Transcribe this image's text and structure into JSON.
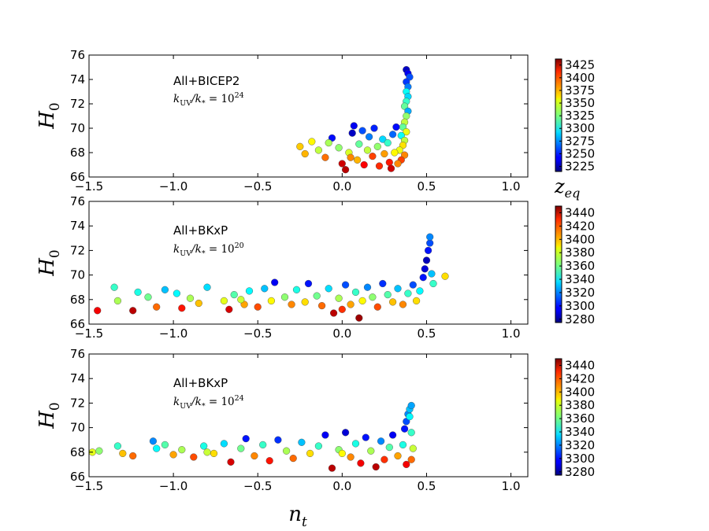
{
  "chart_data": [
    {
      "type": "scatter",
      "ylabel": "H",
      "ylabel_sub": "0",
      "xlabel": "",
      "xlim": [
        -1.5,
        1.1
      ],
      "ylim": [
        66,
        76
      ],
      "xticks": [
        "−1.5",
        "−1.0",
        "−0.5",
        "0.0",
        "0.5",
        "1.0"
      ],
      "yticks": [
        "66",
        "68",
        "70",
        "72",
        "74",
        "76"
      ],
      "annotation": "All+BICEP2",
      "annotation_math": "k_UV/k_* = 10^24",
      "colorbar": {
        "label": "z_eq",
        "range": [
          3215,
          3437
        ],
        "ticks": [
          "3225",
          "3250",
          "3275",
          "3300",
          "3325",
          "3350",
          "3375",
          "3400",
          "3425"
        ]
      },
      "points": [
        {
          "x": 0.38,
          "y": 74.8,
          "c": 3230
        },
        {
          "x": 0.39,
          "y": 74.5,
          "c": 3240
        },
        {
          "x": 0.4,
          "y": 74.2,
          "c": 3260
        },
        {
          "x": 0.38,
          "y": 73.8,
          "c": 3255
        },
        {
          "x": 0.39,
          "y": 73.4,
          "c": 3270
        },
        {
          "x": 0.38,
          "y": 73.0,
          "c": 3300
        },
        {
          "x": 0.39,
          "y": 72.6,
          "c": 3290
        },
        {
          "x": 0.38,
          "y": 72.2,
          "c": 3310
        },
        {
          "x": 0.37,
          "y": 71.8,
          "c": 3320
        },
        {
          "x": 0.39,
          "y": 71.4,
          "c": 3280
        },
        {
          "x": 0.38,
          "y": 71.0,
          "c": 3330
        },
        {
          "x": 0.37,
          "y": 70.5,
          "c": 3340
        },
        {
          "x": 0.36,
          "y": 70.1,
          "c": 3320
        },
        {
          "x": 0.38,
          "y": 69.7,
          "c": 3350
        },
        {
          "x": 0.35,
          "y": 69.4,
          "c": 3300
        },
        {
          "x": 0.37,
          "y": 69.0,
          "c": 3340
        },
        {
          "x": 0.36,
          "y": 68.6,
          "c": 3360
        },
        {
          "x": 0.34,
          "y": 68.2,
          "c": 3350
        },
        {
          "x": 0.37,
          "y": 67.8,
          "c": 3380
        },
        {
          "x": 0.35,
          "y": 67.4,
          "c": 3395
        },
        {
          "x": 0.33,
          "y": 67.1,
          "c": 3380
        },
        {
          "x": -0.25,
          "y": 68.5,
          "c": 3365
        },
        {
          "x": -0.18,
          "y": 68.9,
          "c": 3355
        },
        {
          "x": -0.14,
          "y": 68.2,
          "c": 3340
        },
        {
          "x": -0.1,
          "y": 67.6,
          "c": 3385
        },
        {
          "x": -0.06,
          "y": 69.2,
          "c": 3245
        },
        {
          "x": -0.02,
          "y": 68.4,
          "c": 3330
        },
        {
          "x": 0.0,
          "y": 67.1,
          "c": 3420
        },
        {
          "x": 0.02,
          "y": 66.6,
          "c": 3425
        },
        {
          "x": 0.04,
          "y": 68.0,
          "c": 3345
        },
        {
          "x": 0.06,
          "y": 69.6,
          "c": 3230
        },
        {
          "x": 0.07,
          "y": 70.2,
          "c": 3240
        },
        {
          "x": 0.09,
          "y": 67.4,
          "c": 3370
        },
        {
          "x": 0.1,
          "y": 68.7,
          "c": 3320
        },
        {
          "x": 0.12,
          "y": 69.8,
          "c": 3260
        },
        {
          "x": 0.13,
          "y": 67.0,
          "c": 3410
        },
        {
          "x": 0.15,
          "y": 68.2,
          "c": 3340
        },
        {
          "x": 0.16,
          "y": 69.3,
          "c": 3270
        },
        {
          "x": 0.18,
          "y": 67.7,
          "c": 3395
        },
        {
          "x": 0.19,
          "y": 70.0,
          "c": 3250
        },
        {
          "x": 0.21,
          "y": 68.5,
          "c": 3330
        },
        {
          "x": 0.22,
          "y": 66.9,
          "c": 3400
        },
        {
          "x": 0.24,
          "y": 69.1,
          "c": 3290
        },
        {
          "x": 0.25,
          "y": 67.9,
          "c": 3375
        },
        {
          "x": 0.27,
          "y": 68.8,
          "c": 3310
        },
        {
          "x": 0.28,
          "y": 67.2,
          "c": 3405
        },
        {
          "x": 0.29,
          "y": 66.7,
          "c": 3420
        },
        {
          "x": 0.3,
          "y": 69.5,
          "c": 3265
        },
        {
          "x": 0.31,
          "y": 68.0,
          "c": 3355
        },
        {
          "x": 0.32,
          "y": 70.1,
          "c": 3245
        },
        {
          "x": -0.22,
          "y": 67.9,
          "c": 3370
        },
        {
          "x": -0.08,
          "y": 68.8,
          "c": 3335
        },
        {
          "x": 0.05,
          "y": 67.6,
          "c": 3380
        }
      ]
    },
    {
      "type": "scatter",
      "ylabel": "H",
      "ylabel_sub": "0",
      "xlabel": "",
      "xlim": [
        -1.5,
        1.1
      ],
      "ylim": [
        66,
        76
      ],
      "xticks": [
        "−1.5",
        "−1.0",
        "−0.5",
        "0.0",
        "0.5",
        "1.0"
      ],
      "yticks": [
        "66",
        "68",
        "70",
        "72",
        "74",
        "76"
      ],
      "annotation": "All+BKxP",
      "annotation_math": "k_UV/k_* = 10^20",
      "colorbar": {
        "label": "",
        "range": [
          3275,
          3450
        ],
        "ticks": [
          "3280",
          "3300",
          "3320",
          "3340",
          "3360",
          "3380",
          "3400",
          "3420",
          "3440"
        ]
      },
      "points": [
        {
          "x": -1.45,
          "y": 67.1,
          "c": 3430
        },
        {
          "x": -1.35,
          "y": 69.0,
          "c": 3350
        },
        {
          "x": -1.33,
          "y": 67.9,
          "c": 3370
        },
        {
          "x": -1.24,
          "y": 67.1,
          "c": 3440
        },
        {
          "x": -1.21,
          "y": 68.6,
          "c": 3345
        },
        {
          "x": -1.15,
          "y": 68.2,
          "c": 3360
        },
        {
          "x": -1.1,
          "y": 67.4,
          "c": 3410
        },
        {
          "x": -1.05,
          "y": 68.8,
          "c": 3330
        },
        {
          "x": -0.98,
          "y": 68.5,
          "c": 3340
        },
        {
          "x": -0.95,
          "y": 67.3,
          "c": 3425
        },
        {
          "x": -0.9,
          "y": 68.1,
          "c": 3370
        },
        {
          "x": -0.85,
          "y": 67.7,
          "c": 3395
        },
        {
          "x": -0.8,
          "y": 69.0,
          "c": 3335
        },
        {
          "x": -0.7,
          "y": 67.9,
          "c": 3380
        },
        {
          "x": -0.67,
          "y": 67.2,
          "c": 3435
        },
        {
          "x": -0.64,
          "y": 68.4,
          "c": 3355
        },
        {
          "x": -0.58,
          "y": 67.6,
          "c": 3400
        },
        {
          "x": -0.55,
          "y": 68.7,
          "c": 3340
        },
        {
          "x": -0.5,
          "y": 67.4,
          "c": 3415
        },
        {
          "x": -0.46,
          "y": 68.9,
          "c": 3330
        },
        {
          "x": -0.42,
          "y": 67.9,
          "c": 3385
        },
        {
          "x": -0.4,
          "y": 69.4,
          "c": 3295
        },
        {
          "x": -0.34,
          "y": 68.2,
          "c": 3365
        },
        {
          "x": -0.3,
          "y": 67.6,
          "c": 3405
        },
        {
          "x": -0.27,
          "y": 68.8,
          "c": 3345
        },
        {
          "x": -0.22,
          "y": 67.8,
          "c": 3390
        },
        {
          "x": -0.2,
          "y": 69.3,
          "c": 3300
        },
        {
          "x": -0.15,
          "y": 68.3,
          "c": 3360
        },
        {
          "x": -0.12,
          "y": 67.5,
          "c": 3410
        },
        {
          "x": -0.08,
          "y": 68.9,
          "c": 3335
        },
        {
          "x": -0.05,
          "y": 66.9,
          "c": 3440
        },
        {
          "x": -0.02,
          "y": 68.1,
          "c": 3370
        },
        {
          "x": 0.02,
          "y": 69.2,
          "c": 3310
        },
        {
          "x": 0.05,
          "y": 67.6,
          "c": 3400
        },
        {
          "x": 0.08,
          "y": 68.6,
          "c": 3350
        },
        {
          "x": 0.1,
          "y": 66.5,
          "c": 3445
        },
        {
          "x": 0.12,
          "y": 67.9,
          "c": 3385
        },
        {
          "x": 0.15,
          "y": 69.0,
          "c": 3320
        },
        {
          "x": 0.18,
          "y": 68.2,
          "c": 3365
        },
        {
          "x": 0.21,
          "y": 67.4,
          "c": 3415
        },
        {
          "x": 0.24,
          "y": 69.3,
          "c": 3305
        },
        {
          "x": 0.27,
          "y": 68.4,
          "c": 3355
        },
        {
          "x": 0.3,
          "y": 67.8,
          "c": 3395
        },
        {
          "x": 0.33,
          "y": 68.9,
          "c": 3330
        },
        {
          "x": 0.36,
          "y": 67.6,
          "c": 3405
        },
        {
          "x": 0.39,
          "y": 68.5,
          "c": 3350
        },
        {
          "x": 0.42,
          "y": 69.2,
          "c": 3310
        },
        {
          "x": 0.44,
          "y": 67.9,
          "c": 3390
        },
        {
          "x": 0.46,
          "y": 68.7,
          "c": 3340
        },
        {
          "x": 0.48,
          "y": 69.8,
          "c": 3300
        },
        {
          "x": 0.49,
          "y": 70.5,
          "c": 3290
        },
        {
          "x": 0.5,
          "y": 71.2,
          "c": 3285
        },
        {
          "x": 0.51,
          "y": 72.0,
          "c": 3300
        },
        {
          "x": 0.52,
          "y": 72.6,
          "c": 3310
        },
        {
          "x": 0.52,
          "y": 73.1,
          "c": 3320
        },
        {
          "x": 0.53,
          "y": 70.1,
          "c": 3330
        },
        {
          "x": 0.54,
          "y": 69.3,
          "c": 3350
        },
        {
          "x": 0.61,
          "y": 69.9,
          "c": 3390
        },
        {
          "x": -0.6,
          "y": 68.0,
          "c": 3375
        },
        {
          "x": 0.0,
          "y": 67.2,
          "c": 3420
        }
      ]
    },
    {
      "type": "scatter",
      "ylabel": "H",
      "ylabel_sub": "0",
      "xlabel": "n",
      "xlabel_sub": "t",
      "xlim": [
        -1.5,
        1.1
      ],
      "ylim": [
        66,
        76
      ],
      "xticks": [
        "−1.5",
        "−1.0",
        "−0.5",
        "0.0",
        "0.5",
        "1.0"
      ],
      "yticks": [
        "66",
        "68",
        "70",
        "72",
        "74",
        "76"
      ],
      "annotation": "All+BKxP",
      "annotation_math": "k_UV/k_* = 10^24",
      "colorbar": {
        "label": "",
        "range": [
          3275,
          3450
        ],
        "ticks": [
          "3280",
          "3300",
          "3320",
          "3340",
          "3360",
          "3380",
          "3400",
          "3420",
          "3440"
        ]
      },
      "points": [
        {
          "x": -1.48,
          "y": 68.0,
          "c": 3380
        },
        {
          "x": -1.44,
          "y": 68.1,
          "c": 3365
        },
        {
          "x": -1.33,
          "y": 68.5,
          "c": 3350
        },
        {
          "x": -1.3,
          "y": 67.9,
          "c": 3395
        },
        {
          "x": -1.24,
          "y": 67.7,
          "c": 3410
        },
        {
          "x": -1.12,
          "y": 68.9,
          "c": 3320
        },
        {
          "x": -1.1,
          "y": 68.3,
          "c": 3340
        },
        {
          "x": -1.05,
          "y": 68.6,
          "c": 3355
        },
        {
          "x": -1.0,
          "y": 67.8,
          "c": 3400
        },
        {
          "x": -0.95,
          "y": 68.2,
          "c": 3370
        },
        {
          "x": -0.88,
          "y": 67.6,
          "c": 3415
        },
        {
          "x": -0.82,
          "y": 68.5,
          "c": 3345
        },
        {
          "x": -0.76,
          "y": 67.9,
          "c": 3390
        },
        {
          "x": -0.7,
          "y": 68.7,
          "c": 3335
        },
        {
          "x": -0.66,
          "y": 67.2,
          "c": 3435
        },
        {
          "x": -0.6,
          "y": 68.3,
          "c": 3360
        },
        {
          "x": -0.57,
          "y": 69.1,
          "c": 3300
        },
        {
          "x": -0.52,
          "y": 67.7,
          "c": 3405
        },
        {
          "x": -0.47,
          "y": 68.6,
          "c": 3350
        },
        {
          "x": -0.43,
          "y": 67.3,
          "c": 3425
        },
        {
          "x": -0.38,
          "y": 69.0,
          "c": 3305
        },
        {
          "x": -0.33,
          "y": 68.1,
          "c": 3370
        },
        {
          "x": -0.29,
          "y": 67.5,
          "c": 3410
        },
        {
          "x": -0.24,
          "y": 68.8,
          "c": 3330
        },
        {
          "x": -0.19,
          "y": 67.9,
          "c": 3390
        },
        {
          "x": -0.14,
          "y": 68.5,
          "c": 3350
        },
        {
          "x": -0.1,
          "y": 69.4,
          "c": 3295
        },
        {
          "x": -0.06,
          "y": 66.7,
          "c": 3440
        },
        {
          "x": -0.02,
          "y": 68.2,
          "c": 3365
        },
        {
          "x": 0.02,
          "y": 69.6,
          "c": 3290
        },
        {
          "x": 0.05,
          "y": 67.6,
          "c": 3405
        },
        {
          "x": 0.08,
          "y": 68.7,
          "c": 3345
        },
        {
          "x": 0.11,
          "y": 67.1,
          "c": 3430
        },
        {
          "x": 0.14,
          "y": 69.2,
          "c": 3300
        },
        {
          "x": 0.17,
          "y": 68.1,
          "c": 3370
        },
        {
          "x": 0.2,
          "y": 66.8,
          "c": 3440
        },
        {
          "x": 0.23,
          "y": 68.9,
          "c": 3320
        },
        {
          "x": 0.25,
          "y": 67.4,
          "c": 3420
        },
        {
          "x": 0.28,
          "y": 68.4,
          "c": 3355
        },
        {
          "x": 0.3,
          "y": 69.4,
          "c": 3295
        },
        {
          "x": 0.33,
          "y": 67.7,
          "c": 3400
        },
        {
          "x": 0.36,
          "y": 68.6,
          "c": 3345
        },
        {
          "x": 0.37,
          "y": 69.9,
          "c": 3300
        },
        {
          "x": 0.38,
          "y": 70.5,
          "c": 3310
        },
        {
          "x": 0.39,
          "y": 71.1,
          "c": 3320
        },
        {
          "x": 0.4,
          "y": 71.5,
          "c": 3330
        },
        {
          "x": 0.41,
          "y": 71.8,
          "c": 3325
        },
        {
          "x": 0.4,
          "y": 70.9,
          "c": 3340
        },
        {
          "x": 0.41,
          "y": 69.6,
          "c": 3350
        },
        {
          "x": 0.42,
          "y": 68.3,
          "c": 3375
        },
        {
          "x": 0.41,
          "y": 67.4,
          "c": 3410
        },
        {
          "x": 0.38,
          "y": 67.0,
          "c": 3430
        },
        {
          "x": -0.8,
          "y": 68.0,
          "c": 3375
        },
        {
          "x": 0.0,
          "y": 67.9,
          "c": 3385
        }
      ]
    }
  ]
}
